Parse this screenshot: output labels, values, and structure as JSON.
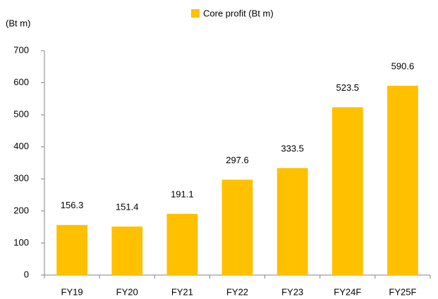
{
  "chart_data": {
    "type": "bar",
    "y_label": "(Bt m)",
    "categories": [
      "FY19",
      "FY20",
      "FY21",
      "FY22",
      "FY23",
      "FY24F",
      "FY25F"
    ],
    "series": [
      {
        "name": "Core profit (Bt m)",
        "color": "#ffc000",
        "values": [
          156.3,
          151.4,
          191.1,
          297.6,
          333.5,
          523.5,
          590.6
        ]
      }
    ],
    "ylim": [
      0,
      700
    ],
    "yticks": [
      0,
      100,
      200,
      300,
      400,
      500,
      600,
      700
    ],
    "grid": false,
    "legend": "top"
  }
}
